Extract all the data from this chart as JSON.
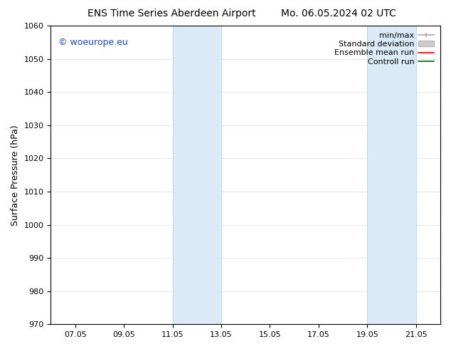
{
  "title_left": "ENS Time Series Aberdeen Airport",
  "title_right": "Mo. 06.05.2024 02 UTC",
  "ylabel": "Surface Pressure (hPa)",
  "ylim": [
    970,
    1060
  ],
  "yticks": [
    970,
    980,
    990,
    1000,
    1010,
    1020,
    1030,
    1040,
    1050,
    1060
  ],
  "xtick_positions": [
    7,
    9,
    11,
    13,
    15,
    17,
    19,
    21
  ],
  "xtick_labels": [
    "07.05",
    "09.05",
    "11.05",
    "13.05",
    "15.05",
    "17.05",
    "19.05",
    "21.05"
  ],
  "xlim": [
    6.0,
    22.0
  ],
  "shaded_bands": [
    {
      "x_start": 11.0,
      "x_end": 13.0
    },
    {
      "x_start": 19.0,
      "x_end": 21.0
    }
  ],
  "shaded_color": "#daeaf7",
  "shaded_edge_color": "#b8d4e8",
  "watermark_text": "© woeurope.eu",
  "watermark_color": "#2244bb",
  "legend_items": [
    {
      "label": "min/max",
      "color": "#aaaaaa"
    },
    {
      "label": "Standard deviation",
      "color": "#cccccc"
    },
    {
      "label": "Ensemble mean run",
      "color": "red"
    },
    {
      "label": "Controll run",
      "color": "green"
    }
  ],
  "bg_color": "#ffffff",
  "plot_bg_color": "#ffffff",
  "spine_color": "#000000",
  "grid_color": "#dddddd",
  "title_fontsize": 10,
  "axis_label_fontsize": 9,
  "tick_fontsize": 8,
  "watermark_fontsize": 9,
  "legend_fontsize": 8
}
